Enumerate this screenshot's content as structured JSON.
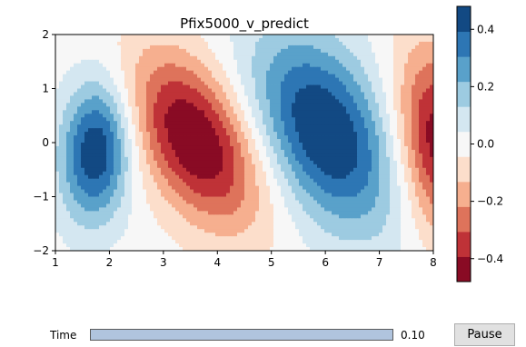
{
  "chart_data": {
    "type": "heatmap",
    "title": "Pfix5000_v_predict",
    "xlabel": "",
    "ylabel": "",
    "xlim": [
      1,
      8
    ],
    "ylim": [
      -2,
      2
    ],
    "x_ticks": [
      1,
      2,
      3,
      4,
      5,
      6,
      7,
      8
    ],
    "y_ticks": [
      -2,
      -1,
      0,
      1,
      2
    ],
    "colormap": "RdBu",
    "vmin": -0.48,
    "vmax": 0.48,
    "colorbar_ticks": [
      0.4,
      0.2,
      0.0,
      -0.2,
      -0.4
    ],
    "colorbar_tick_labels": [
      "0.4",
      "0.2",
      "0.0",
      "−0.2",
      "−0.4"
    ],
    "extrema": [
      {
        "x": 1.75,
        "y": -0.1,
        "value": 0.44
      },
      {
        "x": 3.6,
        "y": 0.05,
        "value": -0.46
      },
      {
        "x": 6.0,
        "y": 0.2,
        "value": 0.46
      },
      {
        "x": 7.9,
        "y": 0.0,
        "value": -0.44
      }
    ]
  },
  "controls": {
    "time_label": "Time",
    "time_value_label": "0.10",
    "time_fraction": 1.0,
    "pause_label": "Pause"
  }
}
